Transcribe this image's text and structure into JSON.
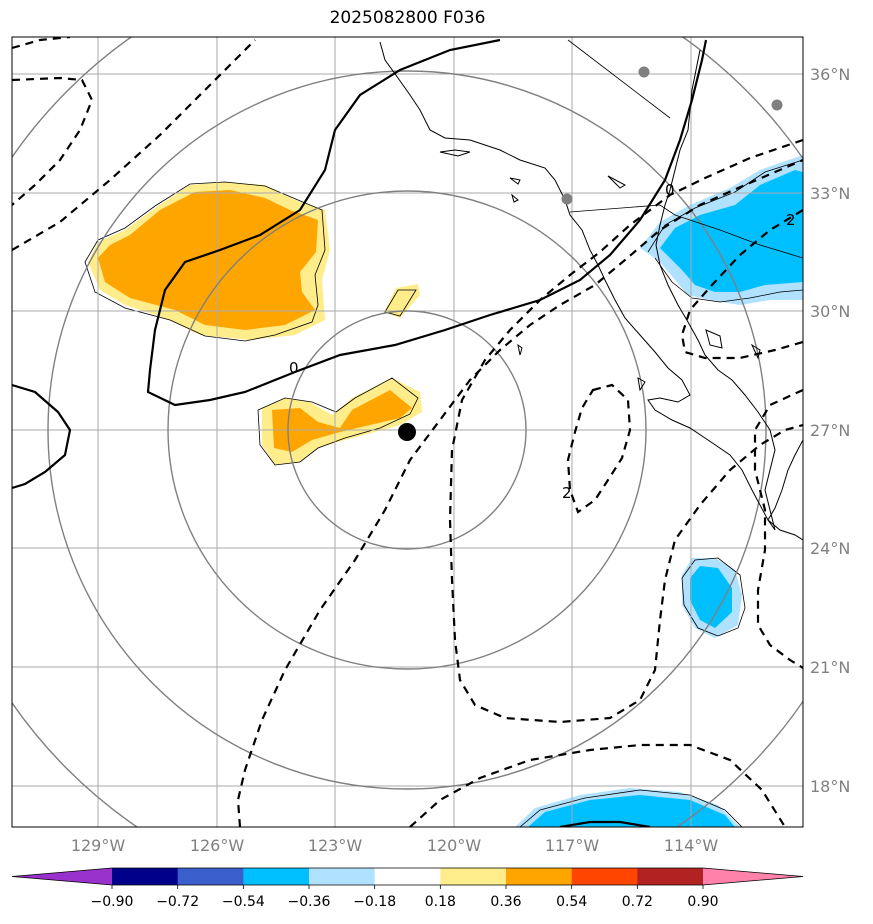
{
  "title": "2025082800 F036",
  "lat_labels": [
    "36°N",
    "33°N",
    "30°N",
    "27°N",
    "24°N",
    "21°N",
    "18°N"
  ],
  "lon_labels": [
    "129°W",
    "126°W",
    "123°W",
    "120°W",
    "117°W",
    "114°W"
  ],
  "contour_labels": [
    "0",
    "0",
    "2",
    "2"
  ],
  "colorbar": {
    "ticks": [
      "−0.90",
      "−0.72",
      "−0.54",
      "−0.36",
      "−0.18",
      "0.18",
      "0.36",
      "0.54",
      "0.72",
      "0.90"
    ],
    "colors": [
      "#9932cc",
      "#00008b",
      "#3a5fcd",
      "#00bfff",
      "#b0e2ff",
      "#ffffff",
      "#ffec8b",
      "#ffa500",
      "#ff4500",
      "#b22222",
      "#ff82ab"
    ]
  },
  "colors": {
    "orange": "#ffa500",
    "light_yellow": "#ffec8b",
    "deep_sky_blue": "#00bfff",
    "light_sky_blue": "#b0e2ff",
    "grid": "#aaaaaa",
    "range_rings": "#808080",
    "storm_center": "#000000"
  },
  "markers": [
    "storm-center",
    "city-dot",
    "city-dot",
    "city-dot"
  ]
}
